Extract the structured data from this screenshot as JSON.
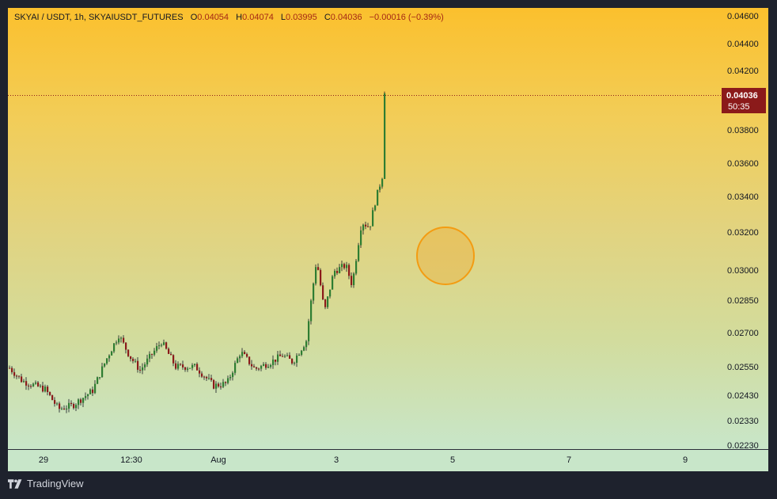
{
  "legend": {
    "symbol": "SKYAI / USDT, 1h, SKYAIUSDT_FUTURES",
    "o_label": "O",
    "o_value": "0.04054",
    "h_label": "H",
    "h_value": "0.04074",
    "l_label": "L",
    "l_value": "0.03995",
    "c_label": "C",
    "c_value": "0.04036",
    "change": "−0.00016 (−0.39%)"
  },
  "last_price": {
    "value": "0.04036",
    "countdown": "50:35"
  },
  "brand": "TradingView",
  "colors": {
    "up": "#2e7d32",
    "down": "#8b1a1a",
    "price_tag": "#8b1a1a",
    "circle_stroke": "#f39c12"
  },
  "chart_data": {
    "type": "candlestick",
    "y_ticks": [
      "0.04600",
      "0.04400",
      "0.04200",
      "0.03800",
      "0.03600",
      "0.03400",
      "0.03200",
      "0.03000",
      "0.02850",
      "0.02700",
      "0.02550",
      "0.02430",
      "0.02330",
      "0.02230"
    ],
    "x_ticks": [
      "29",
      "12:30",
      "Aug",
      "3",
      "5",
      "7",
      "9"
    ],
    "last_close": 0.04036,
    "log_scale": true,
    "grid": false
  }
}
